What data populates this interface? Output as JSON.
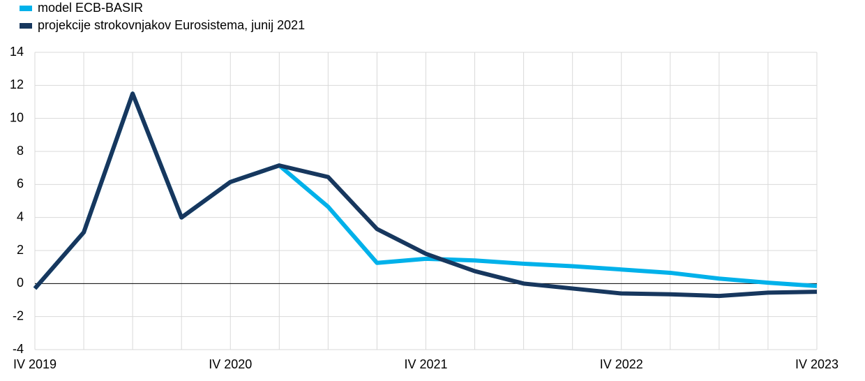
{
  "chart_data": {
    "type": "line",
    "categories": [
      "IV 2019",
      null,
      null,
      null,
      "IV 2020",
      null,
      null,
      null,
      "IV 2021",
      null,
      null,
      null,
      "IV 2022",
      null,
      null,
      null,
      "IV 2023"
    ],
    "series": [
      {
        "name": "model ECB-BASIR",
        "color": "#00b1ea",
        "values": [
          -0.3,
          3.1,
          11.5,
          4.0,
          6.15,
          7.15,
          4.65,
          1.25,
          1.5,
          1.4,
          1.2,
          1.05,
          0.85,
          0.65,
          0.3,
          0.05,
          -0.15
        ]
      },
      {
        "name": "projekcije strokovnjakov Eurosistema, junij 2021",
        "color": "#17375e",
        "values": [
          -0.3,
          3.1,
          11.5,
          4.0,
          6.15,
          7.15,
          6.45,
          3.3,
          1.8,
          0.75,
          0.0,
          -0.3,
          -0.6,
          -0.65,
          -0.75,
          -0.55,
          -0.5
        ]
      }
    ],
    "ylim": [
      -4,
      14
    ],
    "yticks": [
      -4,
      -2,
      0,
      2,
      4,
      6,
      8,
      10,
      12,
      14
    ],
    "grid": true
  }
}
